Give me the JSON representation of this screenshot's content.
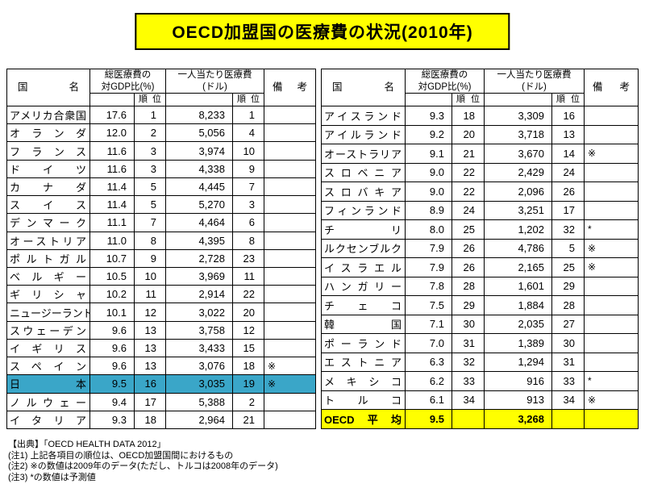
{
  "title": "OECD加盟国の医療費の状況(2010年)",
  "colors": {
    "title_bg": "#ffff00",
    "japan_row": "#3aa6c8",
    "average_row": "#ffff00"
  },
  "headers": {
    "country": "国名",
    "gdp_l1": "総医療費の",
    "gdp_l2": "対GDP比(%)",
    "usd_l1": "一人当たり医療費",
    "usd_l2": "(ドル)",
    "rank": "順 位",
    "remarks": "備考"
  },
  "left_table": {
    "rows": [
      {
        "country": "アメリカ合衆国",
        "gdp": "17.6",
        "gdp_rank": "1",
        "usd": "8,233",
        "usd_rank": "1",
        "remark": ""
      },
      {
        "country": "オランダ",
        "gdp": "12.0",
        "gdp_rank": "2",
        "usd": "5,056",
        "usd_rank": "4",
        "remark": ""
      },
      {
        "country": "フランス",
        "gdp": "11.6",
        "gdp_rank": "3",
        "usd": "3,974",
        "usd_rank": "10",
        "remark": ""
      },
      {
        "country": "ドイツ",
        "gdp": "11.6",
        "gdp_rank": "3",
        "usd": "4,338",
        "usd_rank": "9",
        "remark": ""
      },
      {
        "country": "カナダ",
        "gdp": "11.4",
        "gdp_rank": "5",
        "usd": "4,445",
        "usd_rank": "7",
        "remark": ""
      },
      {
        "country": "スイス",
        "gdp": "11.4",
        "gdp_rank": "5",
        "usd": "5,270",
        "usd_rank": "3",
        "remark": ""
      },
      {
        "country": "デンマーク",
        "gdp": "11.1",
        "gdp_rank": "7",
        "usd": "4,464",
        "usd_rank": "6",
        "remark": ""
      },
      {
        "country": "オーストリア",
        "gdp": "11.0",
        "gdp_rank": "8",
        "usd": "4,395",
        "usd_rank": "8",
        "remark": ""
      },
      {
        "country": "ポルトガル",
        "gdp": "10.7",
        "gdp_rank": "9",
        "usd": "2,728",
        "usd_rank": "23",
        "remark": ""
      },
      {
        "country": "ベルギー",
        "gdp": "10.5",
        "gdp_rank": "10",
        "usd": "3,969",
        "usd_rank": "11",
        "remark": ""
      },
      {
        "country": "ギリシャ",
        "gdp": "10.2",
        "gdp_rank": "11",
        "usd": "2,914",
        "usd_rank": "22",
        "remark": ""
      },
      {
        "country": "ニュージーランド",
        "gdp": "10.1",
        "gdp_rank": "12",
        "usd": "3,022",
        "usd_rank": "20",
        "remark": ""
      },
      {
        "country": "スウェーデン",
        "gdp": "9.6",
        "gdp_rank": "13",
        "usd": "3,758",
        "usd_rank": "12",
        "remark": ""
      },
      {
        "country": "イギリス",
        "gdp": "9.6",
        "gdp_rank": "13",
        "usd": "3,433",
        "usd_rank": "15",
        "remark": ""
      },
      {
        "country": "スペイン",
        "gdp": "9.6",
        "gdp_rank": "13",
        "usd": "3,076",
        "usd_rank": "18",
        "remark": "※"
      },
      {
        "country": "日本",
        "gdp": "9.5",
        "gdp_rank": "16",
        "usd": "3,035",
        "usd_rank": "19",
        "remark": "※",
        "highlight": "japan"
      },
      {
        "country": "ノルウェー",
        "gdp": "9.4",
        "gdp_rank": "17",
        "usd": "5,388",
        "usd_rank": "2",
        "remark": ""
      },
      {
        "country": "イタリア",
        "gdp": "9.3",
        "gdp_rank": "18",
        "usd": "2,964",
        "usd_rank": "21",
        "remark": ""
      }
    ]
  },
  "right_table": {
    "rows": [
      {
        "country": "アイスランド",
        "gdp": "9.3",
        "gdp_rank": "18",
        "usd": "3,309",
        "usd_rank": "16",
        "remark": ""
      },
      {
        "country": "アイルランド",
        "gdp": "9.2",
        "gdp_rank": "20",
        "usd": "3,718",
        "usd_rank": "13",
        "remark": ""
      },
      {
        "country": "オーストラリア",
        "gdp": "9.1",
        "gdp_rank": "21",
        "usd": "3,670",
        "usd_rank": "14",
        "remark": "※"
      },
      {
        "country": "スロベニア",
        "gdp": "9.0",
        "gdp_rank": "22",
        "usd": "2,429",
        "usd_rank": "24",
        "remark": ""
      },
      {
        "country": "スロバキア",
        "gdp": "9.0",
        "gdp_rank": "22",
        "usd": "2,096",
        "usd_rank": "26",
        "remark": ""
      },
      {
        "country": "フィンランド",
        "gdp": "8.9",
        "gdp_rank": "24",
        "usd": "3,251",
        "usd_rank": "17",
        "remark": ""
      },
      {
        "country": "チリ",
        "gdp": "8.0",
        "gdp_rank": "25",
        "usd": "1,202",
        "usd_rank": "32",
        "remark": "*"
      },
      {
        "country": "ルクセンブルク",
        "gdp": "7.9",
        "gdp_rank": "26",
        "usd": "4,786",
        "usd_rank": "5",
        "remark": "※"
      },
      {
        "country": "イスラエル",
        "gdp": "7.9",
        "gdp_rank": "26",
        "usd": "2,165",
        "usd_rank": "25",
        "remark": "※"
      },
      {
        "country": "ハンガリー",
        "gdp": "7.8",
        "gdp_rank": "28",
        "usd": "1,601",
        "usd_rank": "29",
        "remark": ""
      },
      {
        "country": "チェコ",
        "gdp": "7.5",
        "gdp_rank": "29",
        "usd": "1,884",
        "usd_rank": "28",
        "remark": ""
      },
      {
        "country": "韓国",
        "gdp": "7.1",
        "gdp_rank": "30",
        "usd": "2,035",
        "usd_rank": "27",
        "remark": ""
      },
      {
        "country": "ポーランド",
        "gdp": "7.0",
        "gdp_rank": "31",
        "usd": "1,389",
        "usd_rank": "30",
        "remark": ""
      },
      {
        "country": "エストニア",
        "gdp": "6.3",
        "gdp_rank": "32",
        "usd": "1,294",
        "usd_rank": "31",
        "remark": ""
      },
      {
        "country": "メキシコ",
        "gdp": "6.2",
        "gdp_rank": "33",
        "usd": "916",
        "usd_rank": "33",
        "remark": "*"
      },
      {
        "country": "トルコ",
        "gdp": "6.1",
        "gdp_rank": "34",
        "usd": "913",
        "usd_rank": "34",
        "remark": "※"
      },
      {
        "country": "OECD平均",
        "gdp": "9.5",
        "gdp_rank": "",
        "usd": "3,268",
        "usd_rank": "",
        "remark": "",
        "highlight": "summary"
      }
    ]
  },
  "notes": {
    "source": "【出典】「OECD HEALTH DATA 2012」",
    "note1": "(注1) 上記各項目の順位は、OECD加盟国間におけるもの",
    "note2": "(注2) ※の数値は2009年のデータ(ただし、トルコは2008年のデータ)",
    "note3": "(注3) *の数値は予測値"
  }
}
